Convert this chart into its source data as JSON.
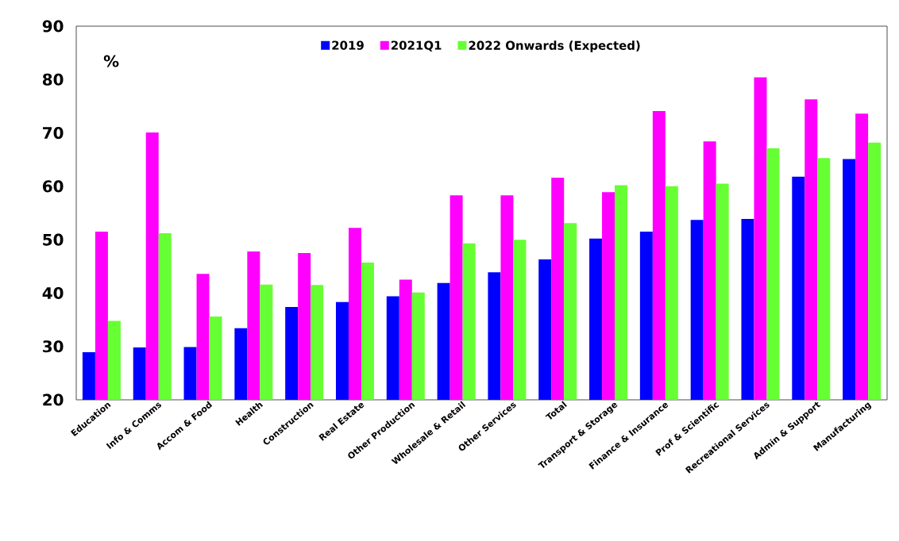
{
  "chart_data": {
    "type": "bar",
    "ylabel": "%",
    "categories": [
      "Education",
      "Info & Comms",
      "Accom & Food",
      "Health",
      "Construction",
      "Real Estate",
      "Other Production",
      "Wholesale & Retail",
      "Other Services",
      "Total",
      "Transport & Storage",
      "Finance & Insurance",
      "Prof & Scientific",
      "Recreational Services",
      "Admin & Support",
      "Manufacturing"
    ],
    "series": [
      {
        "name": "2019",
        "color": "#0000ff",
        "values": [
          28.9,
          29.8,
          29.9,
          33.4,
          37.4,
          38.3,
          39.4,
          41.9,
          43.9,
          46.3,
          50.2,
          51.5,
          53.7,
          53.9,
          61.8,
          65.1
        ]
      },
      {
        "name": "2021Q1",
        "color": "#ff00ff",
        "values": [
          51.5,
          70.1,
          43.6,
          47.8,
          47.5,
          52.2,
          42.5,
          58.3,
          58.3,
          61.6,
          58.9,
          74.1,
          68.4,
          80.4,
          76.3,
          73.6
        ]
      },
      {
        "name": "2022 Onwards (Expected)",
        "color": "#66ff33",
        "values": [
          34.8,
          51.2,
          35.6,
          41.6,
          41.5,
          45.7,
          40.1,
          49.3,
          50.0,
          53.1,
          60.2,
          60.0,
          60.5,
          67.1,
          65.3,
          68.2
        ]
      }
    ],
    "ylim": [
      20,
      90
    ],
    "yticks": [
      20,
      30,
      40,
      50,
      60,
      70,
      80,
      90
    ],
    "grid": false,
    "legend": "top"
  }
}
